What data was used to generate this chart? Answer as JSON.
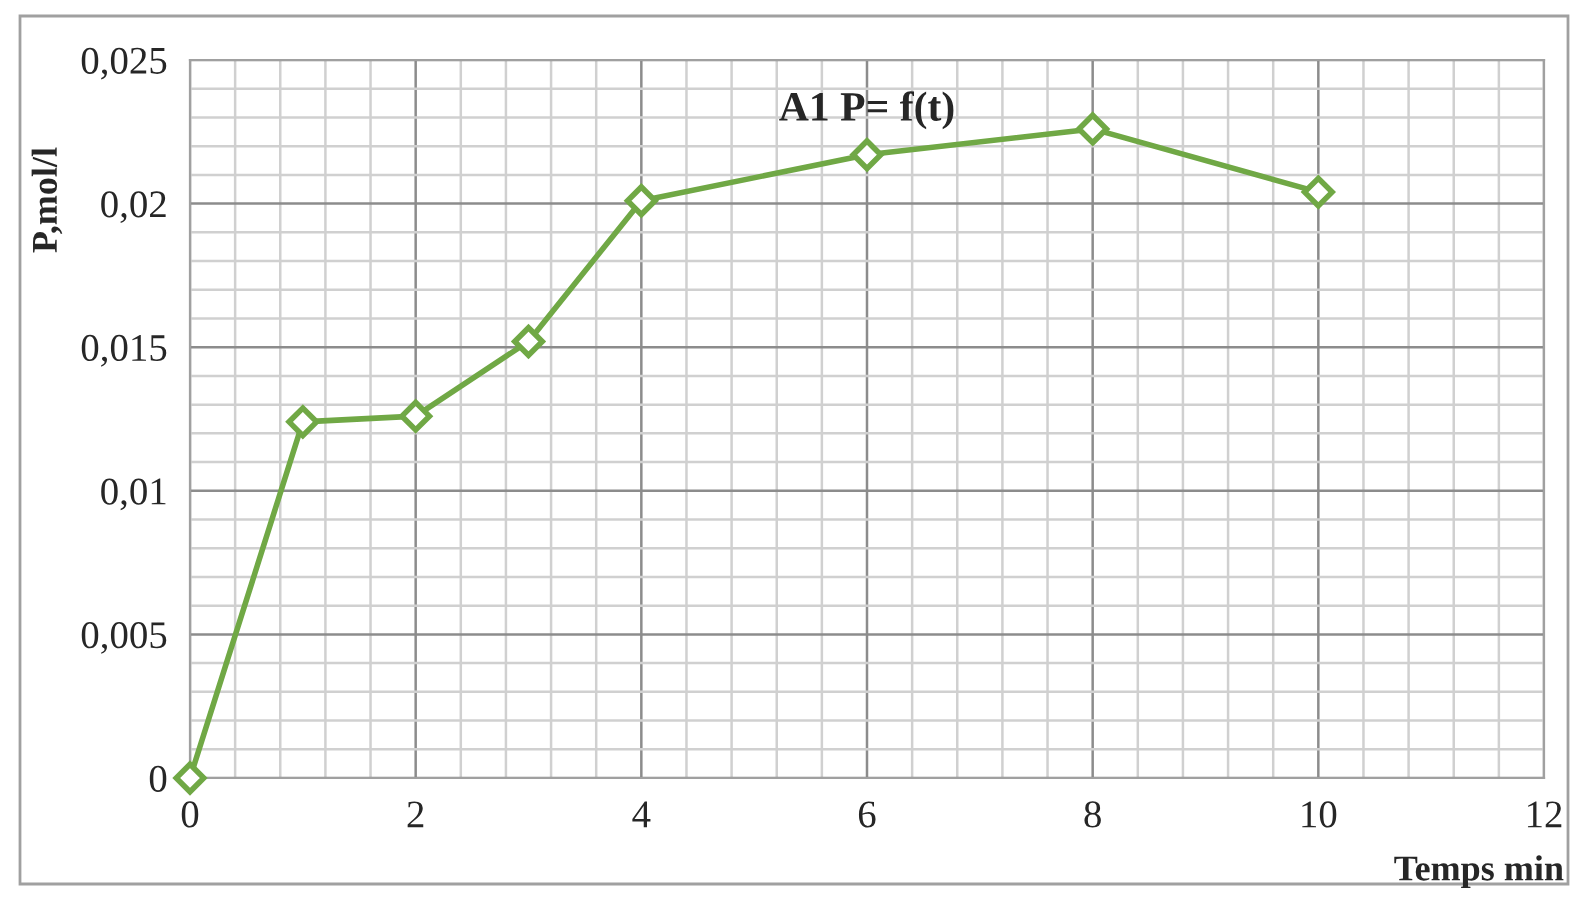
{
  "chart_data": {
    "type": "line",
    "title": "A1 P= f(t)",
    "xlabel": "Temps min",
    "ylabel": "P,mol/l",
    "x": [
      0,
      1,
      2,
      3,
      4,
      6,
      8,
      10
    ],
    "series": [
      {
        "color": "#70a845",
        "values": [
          0,
          0.0124,
          0.0126,
          0.0152,
          0.0201,
          0.0217,
          0.0226,
          0.0204
        ]
      }
    ],
    "xlim": [
      0,
      12
    ],
    "xticks": [
      0,
      2,
      4,
      6,
      8,
      10,
      12
    ],
    "ylim": [
      0,
      0.025
    ],
    "yticks": [
      0,
      {
        "value": 0.005,
        "label": "0,005"
      },
      {
        "value": 0.01,
        "label": "0,01"
      },
      {
        "value": 0.015,
        "label": "0,015"
      },
      {
        "value": 0.02,
        "label": "0,02"
      },
      {
        "value": 0.025,
        "label": "0,025"
      }
    ],
    "grid": true,
    "marker": "diamond",
    "line_style": "solid"
  }
}
